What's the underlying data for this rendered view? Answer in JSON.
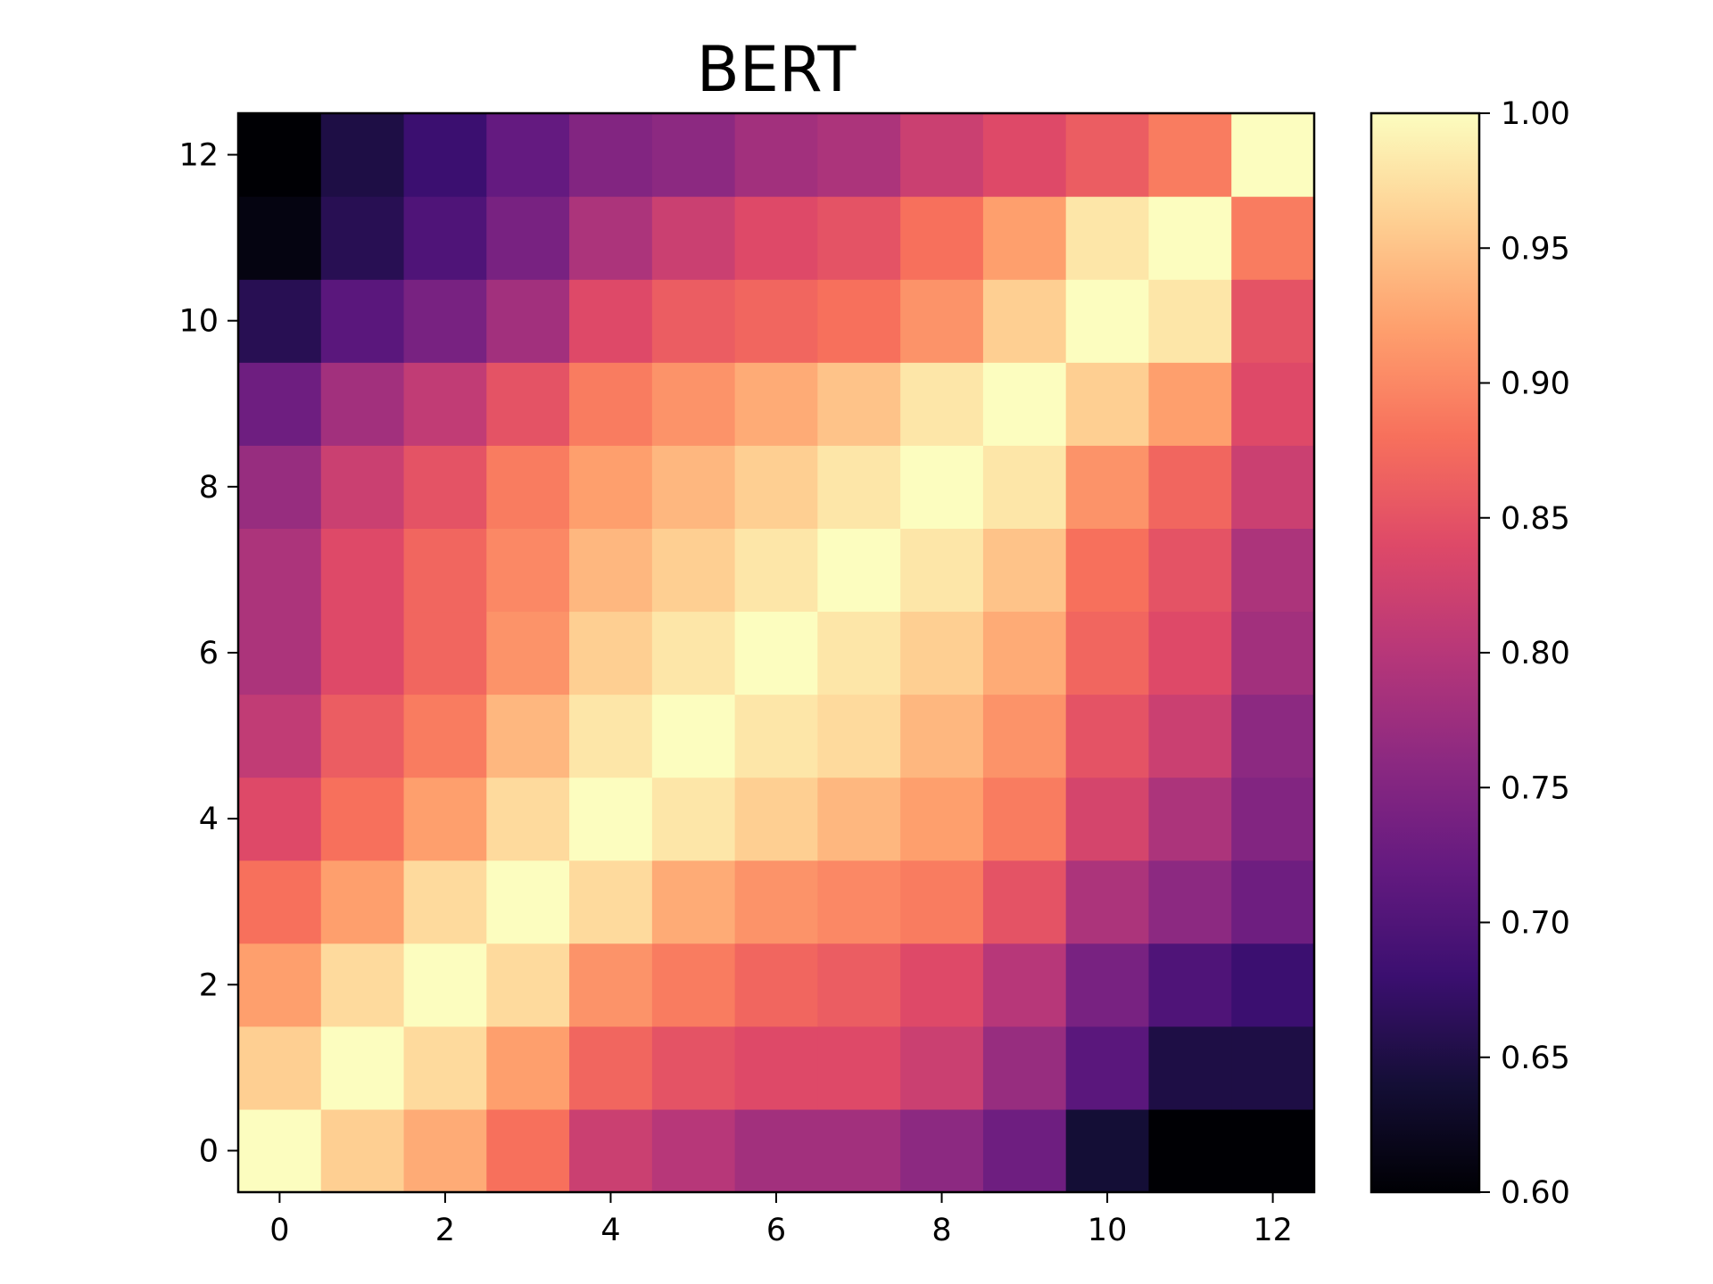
{
  "chart_data": {
    "type": "heatmap",
    "title": "BERT",
    "xlabel": "",
    "ylabel": "",
    "colormap": "magma",
    "x_ticks": [
      0,
      2,
      4,
      6,
      8,
      10,
      12
    ],
    "y_ticks": [
      0,
      2,
      4,
      6,
      8,
      10,
      12
    ],
    "x_range": [
      -0.5,
      12.5
    ],
    "y_range": [
      -0.5,
      12.5
    ],
    "color_range": [
      0.6,
      1.0
    ],
    "colorbar_ticks": [
      "0.60",
      "0.65",
      "0.70",
      "0.75",
      "0.80",
      "0.85",
      "0.90",
      "0.95",
      "1.00"
    ],
    "matrix": [
      [
        1.0,
        0.96,
        0.93,
        0.88,
        0.82,
        0.8,
        0.78,
        0.78,
        0.76,
        0.73,
        0.64,
        0.6,
        0.6
      ],
      [
        0.96,
        1.0,
        0.97,
        0.92,
        0.87,
        0.85,
        0.84,
        0.84,
        0.82,
        0.77,
        0.71,
        0.65,
        0.65
      ],
      [
        0.92,
        0.97,
        1.0,
        0.97,
        0.91,
        0.89,
        0.87,
        0.86,
        0.84,
        0.8,
        0.74,
        0.7,
        0.68
      ],
      [
        0.88,
        0.92,
        0.97,
        1.0,
        0.97,
        0.93,
        0.91,
        0.9,
        0.89,
        0.85,
        0.79,
        0.76,
        0.73
      ],
      [
        0.84,
        0.88,
        0.92,
        0.97,
        1.0,
        0.98,
        0.96,
        0.94,
        0.92,
        0.89,
        0.83,
        0.79,
        0.75
      ],
      [
        0.81,
        0.86,
        0.89,
        0.94,
        0.98,
        1.0,
        0.98,
        0.97,
        0.94,
        0.91,
        0.85,
        0.82,
        0.76
      ],
      [
        0.79,
        0.84,
        0.87,
        0.91,
        0.96,
        0.98,
        1.0,
        0.98,
        0.96,
        0.93,
        0.87,
        0.84,
        0.78
      ],
      [
        0.79,
        0.84,
        0.87,
        0.9,
        0.94,
        0.96,
        0.98,
        1.0,
        0.98,
        0.95,
        0.88,
        0.85,
        0.79
      ],
      [
        0.77,
        0.82,
        0.85,
        0.89,
        0.92,
        0.94,
        0.96,
        0.98,
        1.0,
        0.98,
        0.91,
        0.87,
        0.82
      ],
      [
        0.73,
        0.78,
        0.81,
        0.85,
        0.89,
        0.91,
        0.93,
        0.95,
        0.98,
        1.0,
        0.96,
        0.92,
        0.84
      ],
      [
        0.66,
        0.71,
        0.74,
        0.78,
        0.84,
        0.86,
        0.87,
        0.88,
        0.91,
        0.96,
        1.0,
        0.98,
        0.85
      ],
      [
        0.61,
        0.66,
        0.7,
        0.74,
        0.79,
        0.82,
        0.84,
        0.85,
        0.88,
        0.92,
        0.98,
        1.0,
        0.89
      ],
      [
        0.6,
        0.65,
        0.68,
        0.72,
        0.75,
        0.76,
        0.78,
        0.79,
        0.82,
        0.84,
        0.86,
        0.89,
        1.0
      ]
    ]
  }
}
